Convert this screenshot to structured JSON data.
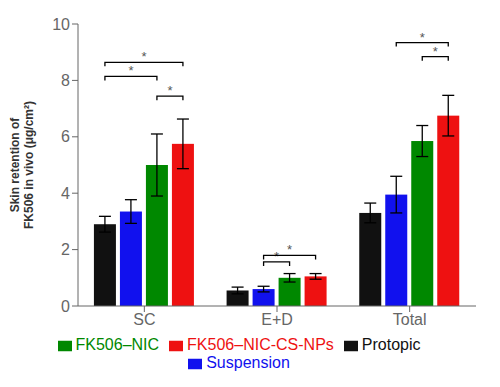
{
  "chart_data": {
    "type": "bar",
    "categories": [
      "SC",
      "E+D",
      "Total"
    ],
    "series": [
      {
        "name": "Protopic",
        "color": "#111111",
        "values": [
          2.9,
          0.55,
          3.3
        ],
        "errors": [
          0.28,
          0.12,
          0.35
        ]
      },
      {
        "name": "Suspension",
        "color": "#1111EE",
        "values": [
          3.35,
          0.6,
          3.95
        ],
        "errors": [
          0.42,
          0.1,
          0.65
        ]
      },
      {
        "name": "FK506–NIC",
        "color": "#008800",
        "values": [
          5.0,
          1.0,
          5.85
        ],
        "errors": [
          1.1,
          0.15,
          0.55
        ]
      },
      {
        "name": "FK506–NIC-CS-NPs",
        "color": "#EE1111",
        "values": [
          5.75,
          1.05,
          6.75
        ],
        "errors": [
          0.88,
          0.1,
          0.72
        ]
      }
    ],
    "ylabel": "Skin retention of\nFK506 in vivo (μg/cm²)",
    "ylim": [
      0,
      10
    ],
    "yticks": [
      0,
      2,
      4,
      6,
      8,
      10
    ],
    "grid": false,
    "legend": "bottom",
    "annotations": [
      {
        "text": "*",
        "category": "SC",
        "from": "Protopic",
        "to": "FK506–NIC",
        "y": 8.0
      },
      {
        "text": "*",
        "category": "SC",
        "from": "Protopic",
        "to": "FK506–NIC-CS-NPs",
        "y": 8.5
      },
      {
        "text": "*",
        "category": "SC",
        "from": "FK506–NIC",
        "to": "FK506–NIC-CS-NPs",
        "y": 7.3
      },
      {
        "text": "*",
        "category": "E+D",
        "from": "Suspension",
        "to": "FK506–NIC",
        "y": 1.42
      },
      {
        "text": "*",
        "category": "E+D",
        "from": "Suspension",
        "to": "FK506–NIC-CS-NPs",
        "y": 1.65
      },
      {
        "text": "*",
        "category": "Total",
        "from": "FK506–NIC",
        "to": "FK506–NIC-CS-NPs",
        "y": 8.7
      },
      {
        "text": "*",
        "category": "Total",
        "from": "Suspension",
        "to": "FK506–NIC-CS-NPs",
        "y": 9.2
      }
    ]
  }
}
